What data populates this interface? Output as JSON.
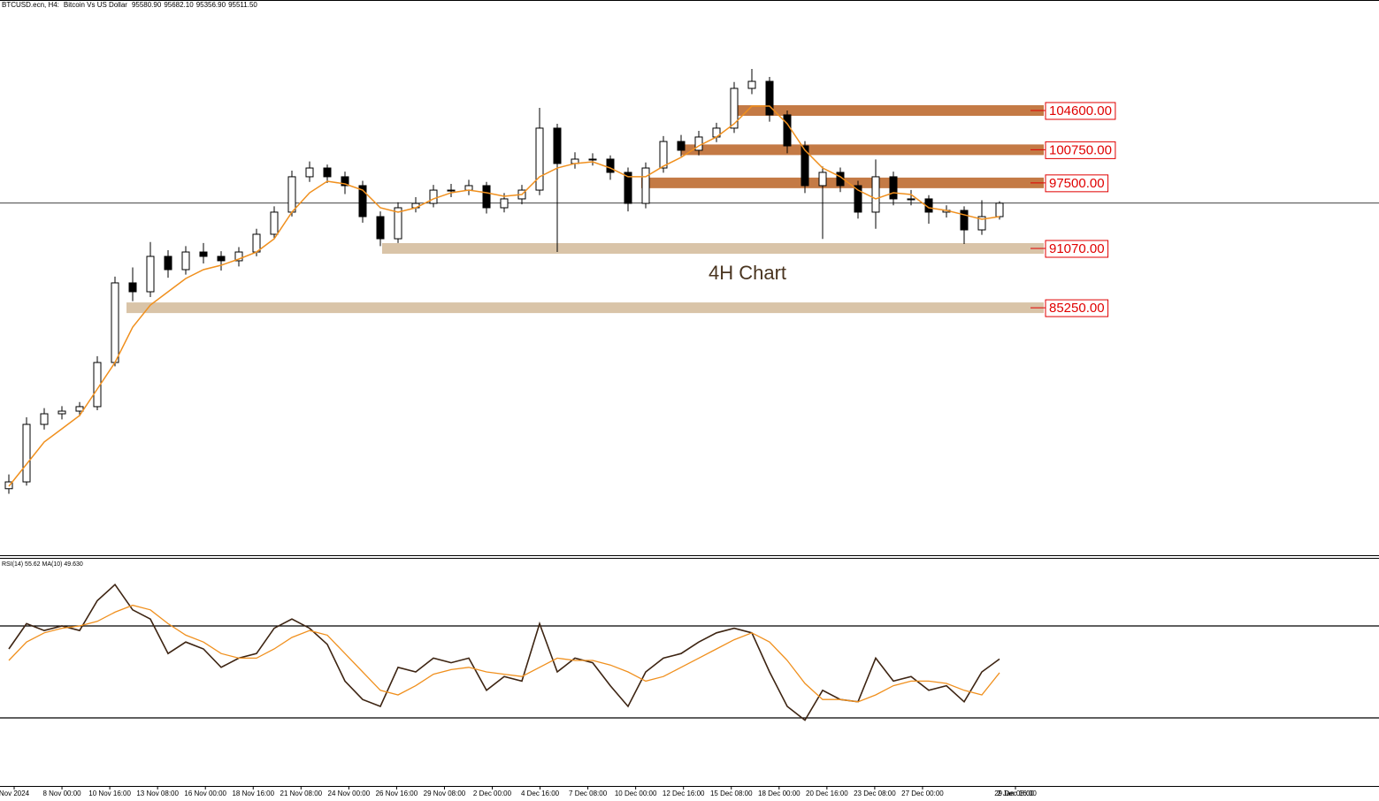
{
  "header": {
    "symbol": "BTCUSD.ecn, H4:",
    "description": "Bitcoin Vs US Dollar",
    "ohlc": [
      {
        "value": 95580.9,
        "label": "95580.90"
      },
      {
        "value": 95682.1,
        "label": "95682.10"
      },
      {
        "value": 95356.9,
        "label": "95356.90"
      },
      {
        "value": 95511.5,
        "label": "95511.50"
      }
    ]
  },
  "chart_data": [
    {
      "type": "candlestick",
      "color": "#000000",
      "open": [
        67500,
        68170,
        73810,
        74850,
        75110,
        75550,
        79880,
        87690,
        86820,
        90290,
        88990,
        90720,
        90290,
        89860,
        90720,
        92460,
        94630,
        98100,
        98960,
        98100,
        97230,
        94190,
        92020,
        95060,
        95490,
        96790,
        96790,
        97230,
        95060,
        95930,
        96790,
        102870,
        99400,
        99830,
        99830,
        98530,
        95490,
        98960,
        101560,
        100700,
        102000,
        102870,
        106770,
        107460,
        104170,
        101130,
        97230,
        98530,
        97230,
        94630,
        98100,
        95930,
        95930,
        94630,
        94800,
        92890,
        94190
      ],
      "high": [
        68900,
        74500,
        75400,
        75600,
        76000,
        80500,
        88300,
        89200,
        91700,
        90900,
        91300,
        91600,
        90800,
        91200,
        93000,
        95200,
        98700,
        99600,
        99300,
        98600,
        97700,
        94700,
        95600,
        96100,
        97300,
        97400,
        97800,
        97600,
        96500,
        97300,
        104860,
        103300,
        100500,
        100400,
        100200,
        99000,
        99500,
        102100,
        102200,
        102600,
        103400,
        107400,
        108670,
        107900,
        104600,
        101600,
        99100,
        99000,
        97700,
        99800,
        98600,
        96800,
        96300,
        95300,
        95200,
        95800,
        95700
      ],
      "low": [
        67000,
        67800,
        73300,
        74300,
        74600,
        75200,
        79500,
        85900,
        86300,
        88200,
        88500,
        89600,
        88900,
        89300,
        90300,
        92000,
        94200,
        97600,
        97500,
        96400,
        93600,
        91300,
        91600,
        94600,
        95100,
        96100,
        96300,
        94500,
        94600,
        95400,
        96300,
        90720,
        98900,
        99200,
        97800,
        94700,
        95000,
        98500,
        100100,
        100200,
        101500,
        102400,
        106200,
        103500,
        100400,
        96500,
        92000,
        96600,
        94000,
        93000,
        95300,
        95300,
        93500,
        94100,
        91500,
        92400,
        93900
      ],
      "close": [
        68170,
        73810,
        74850,
        75110,
        75550,
        79880,
        87690,
        86820,
        90290,
        88990,
        90720,
        90290,
        89860,
        90720,
        92460,
        94630,
        98100,
        98960,
        98100,
        97230,
        94190,
        92020,
        95060,
        95490,
        96790,
        96790,
        97230,
        95060,
        95930,
        96790,
        102870,
        99400,
        99830,
        99830,
        98530,
        95490,
        98960,
        101560,
        100700,
        102000,
        102870,
        106770,
        107460,
        104170,
        101130,
        97230,
        98530,
        97230,
        94630,
        98100,
        95930,
        95930,
        94630,
        94800,
        92890,
        94190,
        95510
      ],
      "ma": {
        "color": "#f0901e",
        "values": [
          67740,
          69910,
          72080,
          73380,
          74680,
          77280,
          79880,
          83350,
          85520,
          86820,
          88120,
          88990,
          89420,
          90030,
          90720,
          92020,
          94630,
          96530,
          97660,
          97400,
          96790,
          95060,
          94630,
          95060,
          95930,
          96530,
          96790,
          96530,
          96190,
          96360,
          98100,
          98960,
          99400,
          99570,
          98960,
          98100,
          98100,
          99140,
          100000,
          101130,
          102000,
          103300,
          105030,
          105030,
          103300,
          100700,
          98960,
          98100,
          96790,
          95930,
          96530,
          96360,
          95060,
          94800,
          94370,
          93930,
          94190
        ]
      },
      "ylim": [
        60975,
        115440
      ],
      "annotation": "4H Chart",
      "zones": [
        {
          "value": {
            "value": 104600,
            "label": "104600.00"
          },
          "color": "#c47a45"
        },
        {
          "value": {
            "value": 100750,
            "label": "100750.00"
          },
          "color": "#c47a45"
        },
        {
          "value": {
            "value": 97500,
            "label": "97500.00"
          },
          "color": "#c47a45"
        },
        {
          "value": {
            "value": 91070,
            "label": "91070.00"
          },
          "color": "#d9c4a8"
        },
        {
          "value": {
            "value": 85250,
            "label": "85250.00"
          },
          "color": "#d9c4a8"
        }
      ],
      "x_labels": [
        "Nov 2024",
        "8 Nov 00:00",
        "10 Nov 16:00",
        "13 Nov 08:00",
        "16 Nov 00:00",
        "18 Nov 16:00",
        "21 Nov 08:00",
        "24 Nov 00:00",
        "26 Nov 16:00",
        "29 Nov 08:00",
        "2 Dec 00:00",
        "4 Dec 16:00",
        "7 Dec 08:00",
        "10 Dec 00:00",
        "12 Dec 16:00",
        "15 Dec 08:00",
        "18 Dec 00:00",
        "20 Dec 16:00",
        "23 Dec 08:00",
        "27 Dec 00:00",
        "29 Dec 16:00",
        "2 Jan 08:00"
      ]
    },
    {
      "type": "line",
      "title": "RSI(14) 55.62 MA(10) 49.630",
      "ylim": [
        0,
        100
      ],
      "levels": [
        30,
        70
      ],
      "series": [
        {
          "color": "#3d2412",
          "values": [
            60,
            71,
            68,
            70,
            68,
            81,
            88,
            77,
            73,
            58,
            63,
            60,
            52,
            56,
            58,
            69,
            73,
            69,
            62,
            46,
            38,
            35,
            52,
            50,
            56,
            54,
            56,
            42,
            48,
            46,
            71,
            50,
            56,
            54,
            44,
            35,
            50,
            56,
            58,
            63,
            67,
            69,
            67,
            50,
            35,
            29,
            42,
            38,
            37,
            56,
            46,
            48,
            42,
            44,
            37,
            50,
            55.62
          ]
        },
        {
          "color": "#f0901e",
          "values": [
            55,
            63,
            67,
            69,
            70,
            72,
            76,
            79,
            77,
            71,
            66,
            63,
            58,
            56,
            56,
            60,
            65,
            68,
            66,
            58,
            50,
            42,
            40,
            44,
            49,
            51,
            52,
            50,
            49,
            48,
            52,
            56,
            55,
            55,
            53,
            50,
            46,
            48,
            52,
            56,
            60,
            64,
            67,
            63,
            55,
            45,
            38,
            38,
            37,
            40,
            44,
            46,
            46,
            45,
            42,
            40,
            49.63
          ]
        }
      ]
    }
  ]
}
